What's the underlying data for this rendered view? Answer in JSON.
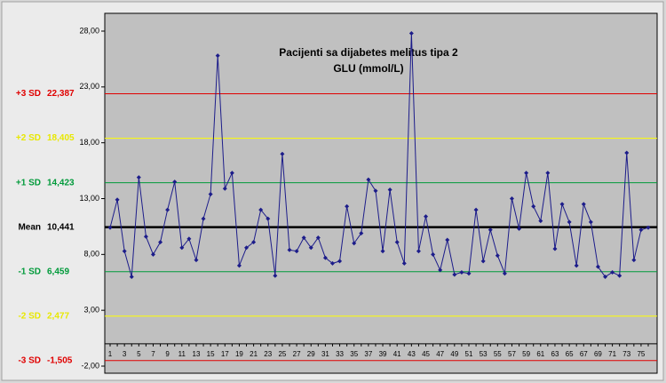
{
  "chart_data": {
    "type": "line",
    "title": "Pacijenti sa dijabetes melitus tipa 2",
    "subtitle": "GLU (mmol/L)",
    "categories": [
      1,
      null,
      3,
      null,
      5,
      null,
      7,
      null,
      9,
      null,
      11,
      null,
      13,
      null,
      15,
      null,
      17,
      null,
      19,
      null,
      21,
      null,
      23,
      null,
      25,
      null,
      27,
      null,
      29,
      null,
      31,
      null,
      33,
      null,
      35,
      null,
      37,
      null,
      39,
      null,
      41,
      null,
      43,
      null,
      45,
      null,
      47,
      null,
      49,
      null,
      51,
      null,
      53,
      null,
      55,
      null,
      57,
      null,
      59,
      null,
      61,
      null,
      63,
      null,
      65,
      null,
      67,
      null,
      69,
      null,
      71,
      null,
      73,
      null,
      75,
      null
    ],
    "series": [
      {
        "name": "GLU",
        "color": "#1c1c8a",
        "values": [
          10.4,
          12.9,
          8.3,
          6.0,
          14.9,
          9.6,
          8.0,
          9.1,
          12.0,
          14.5,
          8.6,
          9.4,
          7.5,
          11.2,
          13.4,
          25.8,
          13.9,
          15.3,
          7.0,
          8.6,
          9.1,
          12.0,
          11.2,
          6.1,
          17.0,
          8.4,
          8.3,
          9.5,
          8.6,
          9.5,
          7.7,
          7.2,
          7.4,
          12.3,
          9.0,
          9.9,
          14.7,
          13.7,
          8.3,
          13.8,
          9.1,
          7.2,
          27.8,
          8.3,
          11.4,
          8.0,
          6.6,
          9.3,
          6.2,
          6.4,
          6.3,
          12.0,
          7.4,
          10.2,
          7.9,
          6.3,
          13.0,
          10.3,
          15.3,
          12.3,
          11.0,
          15.3,
          8.5,
          12.5,
          10.9,
          7.0,
          12.5,
          10.9,
          6.9,
          6.0,
          6.4,
          6.1,
          17.1,
          7.5,
          10.2,
          10.4
        ]
      }
    ],
    "reference_lines": [
      {
        "name": "+3 SD",
        "value": 22.387,
        "label": "22,387",
        "color": "#e00000"
      },
      {
        "name": "+2 SD",
        "value": 18.405,
        "label": "18,405",
        "color": "#ffff00"
      },
      {
        "name": "+1 SD",
        "value": 14.423,
        "label": "14,423",
        "color": "#009a3a"
      },
      {
        "name": "Mean",
        "value": 10.441,
        "label": "10,441",
        "color": "#000000"
      },
      {
        "name": "-1 SD",
        "value": 6.459,
        "label": "6,459",
        "color": "#009a3a"
      },
      {
        "name": "-2 SD",
        "value": 2.477,
        "label": "2,477",
        "color": "#ffff00"
      },
      {
        "name": "-3 SD",
        "value": -1.505,
        "label": "-1,505",
        "color": "#e00000"
      }
    ],
    "ylim": [
      -2,
      28
    ],
    "yticks": [
      {
        "value": -2,
        "label": "-2,00"
      },
      {
        "value": 3,
        "label": "3,00"
      },
      {
        "value": 8,
        "label": "8,00"
      },
      {
        "value": 13,
        "label": "13,00"
      },
      {
        "value": 18,
        "label": "18,00"
      },
      {
        "value": 23,
        "label": "23,00"
      },
      {
        "value": 28,
        "label": "28,00"
      }
    ],
    "grid": false
  }
}
